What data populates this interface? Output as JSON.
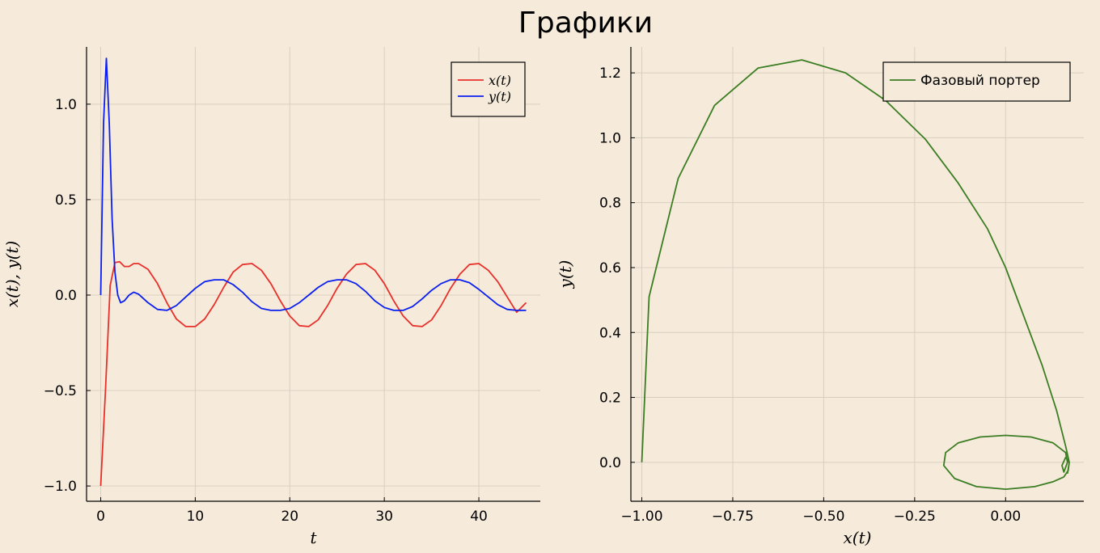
{
  "title": "Графики",
  "colors": {
    "background": "#f6ebdb",
    "grid": "#d9cfc0",
    "axis": "#000000"
  },
  "chart_data": [
    {
      "type": "line",
      "xlabel": "t",
      "ylabel": "x(t), y(t)",
      "xlim": [
        -1.5,
        46.5
      ],
      "ylim": [
        -1.08,
        1.3
      ],
      "xticks": [
        0,
        10,
        20,
        30,
        40
      ],
      "yticks": [
        -1.0,
        -0.5,
        0.0,
        0.5,
        1.0
      ],
      "xtick_labels": [
        "0",
        "10",
        "20",
        "30",
        "40"
      ],
      "ytick_labels": [
        "−1.0",
        "−0.5",
        "0.0",
        "0.5",
        "1.0"
      ],
      "grid": true,
      "legend": "top-right",
      "series": [
        {
          "name": "x(t)",
          "color": "#e8302a",
          "x": [
            0,
            0.5,
            1,
            1.5,
            2,
            2.5,
            3,
            3.5,
            4,
            5,
            6,
            7,
            8,
            9,
            10,
            11,
            12,
            13,
            14,
            15,
            16,
            17,
            18,
            19,
            20,
            21,
            22,
            23,
            24,
            25,
            26,
            27,
            28,
            29,
            30,
            31,
            32,
            33,
            34,
            35,
            36,
            37,
            38,
            39,
            40,
            41,
            42,
            43,
            44,
            45
          ],
          "y": [
            -1.0,
            -0.5,
            0.05,
            0.17,
            0.175,
            0.15,
            0.15,
            0.165,
            0.165,
            0.135,
            0.06,
            -0.04,
            -0.125,
            -0.165,
            -0.165,
            -0.125,
            -0.05,
            0.04,
            0.12,
            0.16,
            0.165,
            0.13,
            0.06,
            -0.03,
            -0.11,
            -0.16,
            -0.165,
            -0.13,
            -0.055,
            0.035,
            0.11,
            0.16,
            0.165,
            0.13,
            0.06,
            -0.03,
            -0.11,
            -0.16,
            -0.165,
            -0.13,
            -0.055,
            0.035,
            0.11,
            0.16,
            0.165,
            0.13,
            0.07,
            -0.01,
            -0.09,
            -0.04
          ]
        },
        {
          "name": "y(t)",
          "color": "#0a1ff0",
          "x": [
            0,
            0.3,
            0.6,
            0.9,
            1.2,
            1.5,
            1.8,
            2.1,
            2.5,
            3,
            3.5,
            4,
            5,
            6,
            7,
            8,
            9,
            10,
            11,
            12,
            13,
            14,
            15,
            16,
            17,
            18,
            19,
            20,
            21,
            22,
            23,
            24,
            25,
            26,
            27,
            28,
            29,
            30,
            31,
            32,
            33,
            34,
            35,
            36,
            37,
            38,
            39,
            40,
            41,
            42,
            43,
            44,
            45
          ],
          "y": [
            0.0,
            0.9,
            1.24,
            0.9,
            0.4,
            0.12,
            0.0,
            -0.04,
            -0.03,
            0.0,
            0.015,
            0.005,
            -0.04,
            -0.075,
            -0.08,
            -0.055,
            -0.01,
            0.035,
            0.07,
            0.08,
            0.08,
            0.055,
            0.015,
            -0.035,
            -0.07,
            -0.08,
            -0.08,
            -0.07,
            -0.04,
            0.0,
            0.04,
            0.07,
            0.08,
            0.08,
            0.06,
            0.02,
            -0.03,
            -0.065,
            -0.08,
            -0.08,
            -0.06,
            -0.02,
            0.025,
            0.06,
            0.08,
            0.08,
            0.065,
            0.03,
            -0.01,
            -0.05,
            -0.075,
            -0.08,
            -0.08
          ]
        }
      ]
    },
    {
      "type": "line",
      "xlabel": "x(t)",
      "ylabel": "y(t)",
      "xlim": [
        -1.03,
        0.215
      ],
      "ylim": [
        -0.12,
        1.28
      ],
      "xticks": [
        -1.0,
        -0.75,
        -0.5,
        -0.25,
        0.0
      ],
      "yticks": [
        0.0,
        0.2,
        0.4,
        0.6,
        0.8,
        1.0,
        1.2
      ],
      "xtick_labels": [
        "−1.00",
        "−0.75",
        "−0.50",
        "−0.25",
        "0.00"
      ],
      "ytick_labels": [
        "0.0",
        "0.2",
        "0.4",
        "0.6",
        "0.8",
        "1.0",
        "1.2"
      ],
      "grid": true,
      "legend": "top-right",
      "series": [
        {
          "name": "Фазовый портер",
          "color": "#3b7d23",
          "x": [
            -1.0,
            -0.98,
            -0.9,
            -0.8,
            -0.68,
            -0.56,
            -0.44,
            -0.33,
            -0.22,
            -0.13,
            -0.05,
            0.0,
            0.05,
            0.1,
            0.14,
            0.165,
            0.175,
            0.172,
            0.16,
            0.13,
            0.08,
            0.0,
            -0.08,
            -0.14,
            -0.17,
            -0.165,
            -0.13,
            -0.07,
            0.0,
            0.07,
            0.13,
            0.165,
            0.17,
            0.16,
            0.155,
            0.165,
            0.175,
            0.17
          ],
          "y": [
            0.0,
            0.51,
            0.875,
            1.1,
            1.215,
            1.24,
            1.2,
            1.115,
            0.995,
            0.86,
            0.72,
            0.6,
            0.45,
            0.3,
            0.16,
            0.05,
            0.0,
            -0.025,
            -0.045,
            -0.06,
            -0.075,
            -0.083,
            -0.075,
            -0.05,
            -0.01,
            0.03,
            0.06,
            0.078,
            0.083,
            0.078,
            0.06,
            0.03,
            0.0,
            -0.03,
            -0.01,
            0.015,
            0.0,
            -0.035
          ]
        }
      ]
    }
  ]
}
